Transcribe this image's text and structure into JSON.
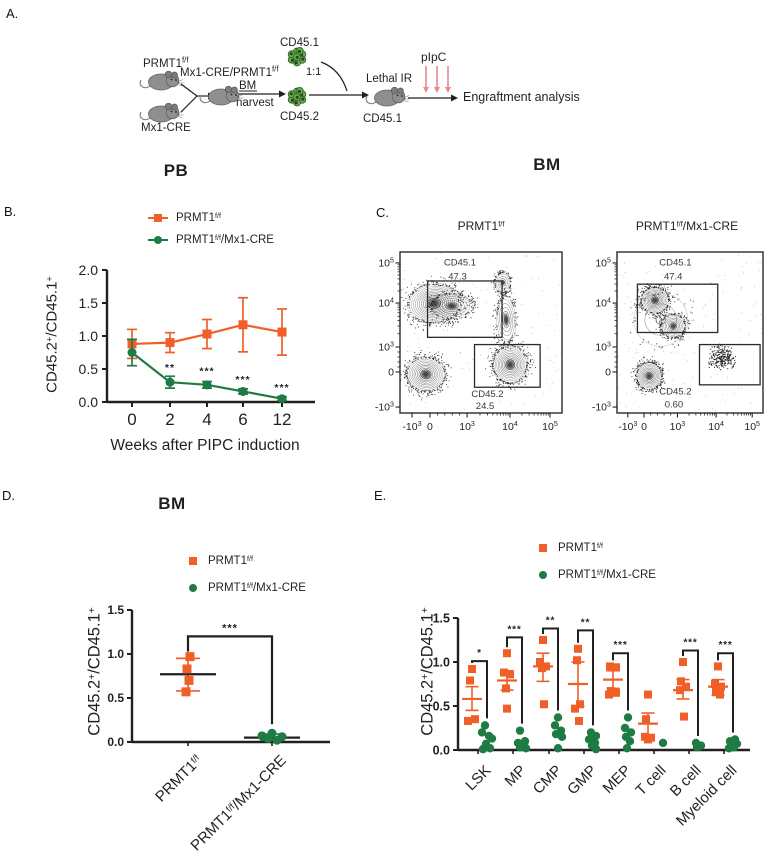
{
  "colors": {
    "orange": "#F15F29",
    "green": "#1E7B43",
    "black": "#231F20",
    "red_arrow": "#E8898C",
    "mouse": "#8F8F8F",
    "cell_fill": "#6CB14E",
    "cell_stroke": "#2F6B2A",
    "cell_core": "#283522"
  },
  "panel_labels": {
    "a": "A.",
    "b": "B.",
    "c": "C.",
    "d": "D.",
    "e": "E."
  },
  "headers": {
    "pb": "PB",
    "bm_c": "BM",
    "bm_d": "BM"
  },
  "legend": {
    "orange": {
      "base": "PRMT1",
      "sup": "f/f",
      "rest": ""
    },
    "green": {
      "base": "PRMT1",
      "sup": "f/f",
      "rest": "/Mx1-CRE"
    }
  },
  "ylabel": {
    "p1": "CD45.2",
    "s1": "+",
    "p2": "/CD45.1",
    "s2": "+"
  },
  "panel_a": {
    "prmt1": {
      "base": "PRMT1",
      "sup": "f/f"
    },
    "mx1cre": "Mx1-CRE",
    "cross": {
      "base": "Mx1-CRE/PRMT1",
      "sup": "f/f"
    },
    "bm": "BM",
    "harvest": "harvest",
    "cd451_top": "CD45.1",
    "ratio": "1:1",
    "cd452": "CD45.2",
    "lethal": "Lethal IR",
    "cd451_bottom": "CD45.1",
    "pipc": "pIpC",
    "engraftment": "Engraftment analysis"
  },
  "panel_d_cats": [
    {
      "base": "PRMT1",
      "sup": "f/f",
      "rest": ""
    },
    {
      "base": "PRMT1",
      "sup": "f/f",
      "rest": "/Mx1-CRE"
    }
  ],
  "chart_data": [
    {
      "type": "line",
      "panel": "B",
      "title": "PB",
      "x": [
        "0",
        "2",
        "4",
        "6",
        "12"
      ],
      "xlabel": "Weeks after PIPC induction",
      "ylabel": "CD45.2+/CD45.1+",
      "ylim": [
        0,
        2
      ],
      "yticks": [
        0,
        0.5,
        1,
        1.5,
        2
      ],
      "series": [
        {
          "name": "PRMT1 f/f",
          "color": "orange",
          "marker": "square",
          "values": [
            0.88,
            0.9,
            1.03,
            1.17,
            1.06
          ],
          "err": [
            0.22,
            0.15,
            0.22,
            0.41,
            0.35
          ]
        },
        {
          "name": "PRMT1 f/f /Mx1-CRE",
          "color": "green",
          "marker": "circle",
          "values": [
            0.75,
            0.3,
            0.26,
            0.16,
            0.05
          ],
          "err": [
            0.2,
            0.09,
            0.05,
            0.04,
            0.03
          ]
        }
      ],
      "sig": [
        {
          "i": 1,
          "label": "**",
          "y": 0.47
        },
        {
          "i": 2,
          "label": "***",
          "y": 0.42
        },
        {
          "i": 3,
          "label": "***",
          "y": 0.29
        },
        {
          "i": 4,
          "label": "***",
          "y": 0.17
        }
      ]
    },
    {
      "type": "contour-flow",
      "panel": "C",
      "title": "BM",
      "x_ticks": [
        {
          "t": "-10",
          "e": "3",
          "f": 0.074
        },
        {
          "t": "0",
          "f": 0.185
        },
        {
          "t": "10",
          "e": "3",
          "f": 0.414
        },
        {
          "t": "10",
          "e": "4",
          "f": 0.679
        },
        {
          "t": "10",
          "e": "5",
          "f": 0.926
        }
      ],
      "y_ticks": [
        {
          "t": "10",
          "e": "5",
          "f": 0.068
        },
        {
          "t": "10",
          "e": "4",
          "f": 0.317
        },
        {
          "t": "10",
          "e": "3",
          "f": 0.59
        },
        {
          "t": "0",
          "f": 0.745
        },
        {
          "t": "-10",
          "e": "3",
          "f": 0.963
        }
      ],
      "plots": [
        {
          "title": {
            "base": "PRMT1",
            "sup": "f/f",
            "rest": ""
          },
          "gates": [
            {
              "rect": [
                0.17,
                0.18,
                0.63,
                0.53
              ],
              "label": "CD45.1",
              "value": "47.3",
              "lx": 0.37,
              "ly": 0.085,
              "vx": 0.355,
              "vy": 0.17
            },
            {
              "rect": [
                0.46,
                0.575,
                0.865,
                0.84
              ],
              "label": "CD45.2",
              "value": "24.5",
              "lx": 0.54,
              "ly": 0.9,
              "vx": 0.525,
              "vy": 0.975
            }
          ],
          "blobs": [
            {
              "cx": 0.21,
              "cy": 0.32,
              "rx": 0.165,
              "ry": 0.125,
              "n": 12,
              "rot": -6
            },
            {
              "cx": 0.32,
              "cy": 0.335,
              "rx": 0.13,
              "ry": 0.08,
              "n": 7,
              "rot": 2
            },
            {
              "cx": 0.16,
              "cy": 0.76,
              "rx": 0.125,
              "ry": 0.11,
              "n": 11,
              "rot": 8
            },
            {
              "cx": 0.68,
              "cy": 0.7,
              "rx": 0.11,
              "ry": 0.12,
              "n": 11,
              "rot": 0
            },
            {
              "cx": 0.655,
              "cy": 0.42,
              "rx": 0.06,
              "ry": 0.15,
              "n": 6,
              "rot": -4
            },
            {
              "cx": 0.635,
              "cy": 0.19,
              "rx": 0.05,
              "ry": 0.065,
              "n": 5,
              "rot": 0
            }
          ],
          "clouds": []
        },
        {
          "title": {
            "base": "PRMT1",
            "sup": "f/f",
            "rest": "/Mx1-CRE"
          },
          "gates": [
            {
              "rect": [
                0.14,
                0.2,
                0.69,
                0.5
              ],
              "label": "CD45.1",
              "value": "47.4",
              "lx": 0.4,
              "ly": 0.085,
              "vx": 0.385,
              "vy": 0.17
            },
            {
              "rect": [
                0.565,
                0.575,
                0.98,
                0.825
              ],
              "label": "CD45.2",
              "value": "0.60",
              "lx": 0.4,
              "ly": 0.885,
              "vx": 0.39,
              "vy": 0.965
            }
          ],
          "blobs": [
            {
              "cx": 0.26,
              "cy": 0.3,
              "rx": 0.1,
              "ry": 0.085,
              "n": 10,
              "rot": -12
            },
            {
              "cx": 0.385,
              "cy": 0.46,
              "rx": 0.085,
              "ry": 0.075,
              "n": 8,
              "rot": -18
            },
            {
              "cx": 0.22,
              "cy": 0.77,
              "rx": 0.09,
              "ry": 0.09,
              "n": 10,
              "rot": 0
            },
            {
              "cx": 0.3,
              "cy": 0.42,
              "rx": 0.185,
              "ry": 0.165,
              "n": 3,
              "rot": -12
            }
          ],
          "clouds": [
            {
              "cx": 0.715,
              "cy": 0.655,
              "sx": 0.06,
              "sy": 0.05,
              "n": 230
            }
          ]
        }
      ]
    },
    {
      "type": "scatter",
      "panel": "D",
      "title": "BM",
      "categories": [
        "PRMT1 f/f",
        "PRMT1 f/f/Mx1-CRE"
      ],
      "ylim": [
        0,
        1.5
      ],
      "yticks": [
        0,
        0.5,
        1,
        1.5
      ],
      "ylabel": "CD45.2+/CD45.1+",
      "groups": [
        {
          "name": "PRMT1 f/f",
          "color": "orange",
          "marker": "square",
          "mean": 0.77,
          "lo": 0.58,
          "hi": 0.95,
          "points": [
            {
              "v": 0.97,
              "dx": 2
            },
            {
              "v": 0.83,
              "dx": -1
            },
            {
              "v": 0.7,
              "dx": 1
            },
            {
              "v": 0.57,
              "dx": -2
            }
          ]
        },
        {
          "name": "PRMT1 f/f/Mx1-CRE",
          "color": "green",
          "marker": "circle",
          "mean": 0.05,
          "lo": 0.02,
          "hi": 0.09,
          "points": [
            {
              "v": 0.1,
              "dx": 0
            },
            {
              "v": 0.07,
              "dx": -10
            },
            {
              "v": 0.06,
              "dx": 10
            },
            {
              "v": 0.04,
              "dx": -4
            },
            {
              "v": 0.02,
              "dx": 5
            }
          ]
        }
      ],
      "sig": {
        "label": "***",
        "y": 1.2
      }
    },
    {
      "type": "scatter",
      "panel": "E",
      "categories": [
        "LSK",
        "MP",
        "CMP",
        "GMP",
        "MEP",
        "T cell",
        "B cell",
        "Myeloid cell"
      ],
      "ylim": [
        0,
        1.5
      ],
      "yticks": [
        0,
        0.5,
        1,
        1.5
      ],
      "ylabel": "CD45.2+/CD45.1+",
      "series_names": [
        "PRMT1 f/f",
        "PRMT1 f/f/Mx1-CRE"
      ],
      "data": [
        {
          "sig": "*",
          "bracket": 1.01,
          "orange": {
            "mean": 0.58,
            "lo": 0.45,
            "hi": 0.72,
            "points": [
              {
                "v": 0.92,
                "dx": 0
              },
              {
                "v": 0.79,
                "dx": -2
              },
              {
                "v": 0.35,
                "dx": 3
              },
              {
                "v": 0.33,
                "dx": -4
              }
            ]
          },
          "green": {
            "points": [
              {
                "v": 0.28,
                "dx": -2
              },
              {
                "v": 0.2,
                "dx": -5
              },
              {
                "v": 0.16,
                "dx": 2
              },
              {
                "v": 0.13,
                "dx": 5
              },
              {
                "v": 0.07,
                "dx": -1
              },
              {
                "v": 0.02,
                "dx": 3
              },
              {
                "v": 0.01,
                "dx": -4
              }
            ]
          }
        },
        {
          "sig": "***",
          "bracket": 1.28,
          "orange": {
            "mean": 0.79,
            "lo": 0.68,
            "hi": 0.9,
            "points": [
              {
                "v": 1.1,
                "dx": 0
              },
              {
                "v": 0.88,
                "dx": -3
              },
              {
                "v": 0.86,
                "dx": 3
              },
              {
                "v": 0.7,
                "dx": -1
              },
              {
                "v": 0.47,
                "dx": 0
              }
            ]
          },
          "green": {
            "points": [
              {
                "v": 0.22,
                "dx": -2
              },
              {
                "v": 0.1,
                "dx": 3
              },
              {
                "v": 0.08,
                "dx": -4
              },
              {
                "v": 0.05,
                "dx": 1
              },
              {
                "v": 0.03,
                "dx": -2
              },
              {
                "v": 0.02,
                "dx": 4
              }
            ]
          }
        },
        {
          "sig": "**",
          "bracket": 1.38,
          "orange": {
            "mean": 0.95,
            "lo": 0.78,
            "hi": 1.1,
            "points": [
              {
                "v": 1.25,
                "dx": 0
              },
              {
                "v": 1.0,
                "dx": -3
              },
              {
                "v": 0.95,
                "dx": 3
              },
              {
                "v": 0.93,
                "dx": -1
              },
              {
                "v": 0.52,
                "dx": 1
              }
            ]
          },
          "green": {
            "points": [
              {
                "v": 0.37,
                "dx": 0
              },
              {
                "v": 0.28,
                "dx": -3
              },
              {
                "v": 0.22,
                "dx": 3
              },
              {
                "v": 0.18,
                "dx": -2
              },
              {
                "v": 0.15,
                "dx": 4
              },
              {
                "v": 0.02,
                "dx": 0
              }
            ]
          }
        },
        {
          "sig": "**",
          "bracket": 1.36,
          "orange": {
            "mean": 0.75,
            "lo": 0.5,
            "hi": 1.0,
            "points": [
              {
                "v": 1.15,
                "dx": 0
              },
              {
                "v": 1.02,
                "dx": -1
              },
              {
                "v": 0.52,
                "dx": 2
              },
              {
                "v": 0.47,
                "dx": -3
              },
              {
                "v": 0.33,
                "dx": 1
              }
            ]
          },
          "green": {
            "points": [
              {
                "v": 0.2,
                "dx": -2
              },
              {
                "v": 0.16,
                "dx": 3
              },
              {
                "v": 0.12,
                "dx": -4
              },
              {
                "v": 0.08,
                "dx": 2
              },
              {
                "v": 0.05,
                "dx": -1
              },
              {
                "v": 0.01,
                "dx": 3
              }
            ]
          }
        },
        {
          "sig": "***",
          "bracket": 1.1,
          "orange": {
            "mean": 0.8,
            "lo": 0.7,
            "hi": 0.9,
            "points": [
              {
                "v": 0.95,
                "dx": -3
              },
              {
                "v": 0.94,
                "dx": 3
              },
              {
                "v": 0.67,
                "dx": -2
              },
              {
                "v": 0.65,
                "dx": 3
              },
              {
                "v": 0.63,
                "dx": -4
              }
            ]
          },
          "green": {
            "points": [
              {
                "v": 0.37,
                "dx": 0
              },
              {
                "v": 0.25,
                "dx": -3
              },
              {
                "v": 0.2,
                "dx": 3
              },
              {
                "v": 0.15,
                "dx": -2
              },
              {
                "v": 0.1,
                "dx": 2
              },
              {
                "v": 0.02,
                "dx": -1
              }
            ]
          }
        },
        {
          "sig": null,
          "bracket": null,
          "orange": {
            "mean": 0.3,
            "lo": 0.15,
            "hi": 0.42,
            "points": [
              {
                "v": 0.63,
                "dx": 0
              },
              {
                "v": 0.35,
                "dx": -2
              },
              {
                "v": 0.15,
                "dx": -3
              },
              {
                "v": 0.14,
                "dx": 3
              },
              {
                "v": 0.12,
                "dx": 0
              }
            ]
          },
          "green": {
            "points": [
              {
                "v": 0.08,
                "dx": 0
              }
            ]
          }
        },
        {
          "sig": "***",
          "bracket": 1.13,
          "orange": {
            "mean": 0.68,
            "lo": 0.58,
            "hi": 0.8,
            "points": [
              {
                "v": 1.0,
                "dx": 0
              },
              {
                "v": 0.78,
                "dx": -2
              },
              {
                "v": 0.72,
                "dx": 3
              },
              {
                "v": 0.68,
                "dx": -3
              },
              {
                "v": 0.38,
                "dx": 1
              }
            ]
          },
          "green": {
            "points": [
              {
                "v": 0.08,
                "dx": -2
              },
              {
                "v": 0.05,
                "dx": 3
              },
              {
                "v": 0.03,
                "dx": -1
              }
            ]
          }
        },
        {
          "sig": "***",
          "bracket": 1.1,
          "orange": {
            "mean": 0.72,
            "lo": 0.62,
            "hi": 0.8,
            "points": [
              {
                "v": 0.95,
                "dx": 0
              },
              {
                "v": 0.75,
                "dx": -3
              },
              {
                "v": 0.72,
                "dx": 3
              },
              {
                "v": 0.66,
                "dx": -2
              },
              {
                "v": 0.63,
                "dx": 2
              }
            ]
          },
          "green": {
            "points": [
              {
                "v": 0.12,
                "dx": 2
              },
              {
                "v": 0.1,
                "dx": -3
              },
              {
                "v": 0.07,
                "dx": 4
              },
              {
                "v": 0.05,
                "dx": -2
              },
              {
                "v": 0.03,
                "dx": 1
              },
              {
                "v": 0.02,
                "dx": -4
              }
            ]
          }
        }
      ]
    }
  ]
}
